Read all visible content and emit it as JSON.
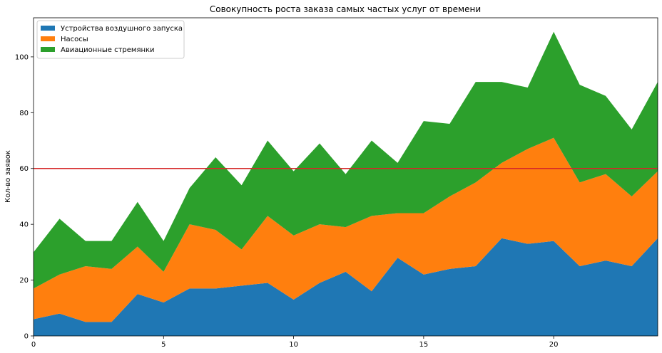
{
  "chart_data": {
    "type": "area",
    "stacked": true,
    "title": "Совокупность роста заказа самых частых услуг от времени",
    "xlabel": "",
    "ylabel": "Кол-во заявок",
    "xlim": [
      0,
      24
    ],
    "ylim": [
      0,
      114
    ],
    "xticks": [
      0,
      5,
      10,
      15,
      20
    ],
    "yticks": [
      0,
      20,
      40,
      60,
      80,
      100
    ],
    "grid": false,
    "legend_position": "top-left",
    "x": [
      0,
      1,
      2,
      3,
      4,
      5,
      6,
      7,
      8,
      9,
      10,
      11,
      12,
      13,
      14,
      15,
      16,
      17,
      18,
      19,
      20,
      21,
      22,
      23,
      24
    ],
    "series": [
      {
        "name": "Устройства воздушного запуска",
        "color": "#1f77b4",
        "values": [
          6,
          8,
          5,
          5,
          15,
          12,
          17,
          17,
          18,
          19,
          13,
          19,
          23,
          16,
          28,
          22,
          24,
          25,
          35,
          33,
          34,
          25,
          27,
          25,
          35
        ]
      },
      {
        "name": "Насосы",
        "color": "#ff7f0e",
        "values": [
          11,
          14,
          20,
          19,
          17,
          11,
          23,
          21,
          13,
          24,
          23,
          21,
          16,
          27,
          16,
          22,
          26,
          30,
          27,
          34,
          37,
          30,
          31,
          25,
          24
        ]
      },
      {
        "name": "Авиационные стремянки",
        "color": "#2ca02c",
        "values": [
          13,
          20,
          9,
          10,
          16,
          11,
          13,
          26,
          23,
          27,
          23,
          29,
          19,
          27,
          18,
          33,
          26,
          36,
          29,
          22,
          38,
          35,
          28,
          24,
          32
        ]
      }
    ],
    "reference_line": {
      "y": 60,
      "color": "#d62728"
    }
  }
}
